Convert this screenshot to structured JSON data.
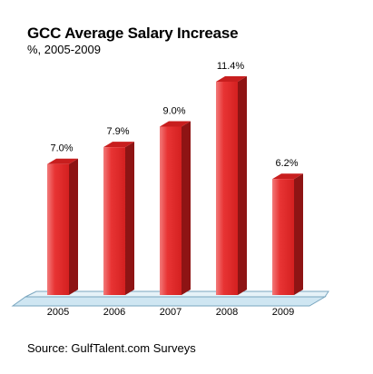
{
  "chart_data": {
    "type": "bar",
    "title": "GCC Average Salary Increase",
    "subtitle": "%, 2005-2009",
    "source": "Source: GulfTalent.com Surveys",
    "categories": [
      "2005",
      "2006",
      "2007",
      "2008",
      "2009"
    ],
    "values": [
      7.0,
      7.9,
      9.0,
      11.4,
      6.2
    ],
    "value_labels": [
      "7.0%",
      "7.9%",
      "9.0%",
      "11.4%",
      "6.2%"
    ],
    "ylim": [
      0,
      11.4
    ],
    "grid": false,
    "style": "3d-bars",
    "colors": {
      "bar_front": "#e83434",
      "bar_side": "#8e1414",
      "bar_top": "#c81e1e",
      "floor": "#cfe6f2"
    }
  }
}
